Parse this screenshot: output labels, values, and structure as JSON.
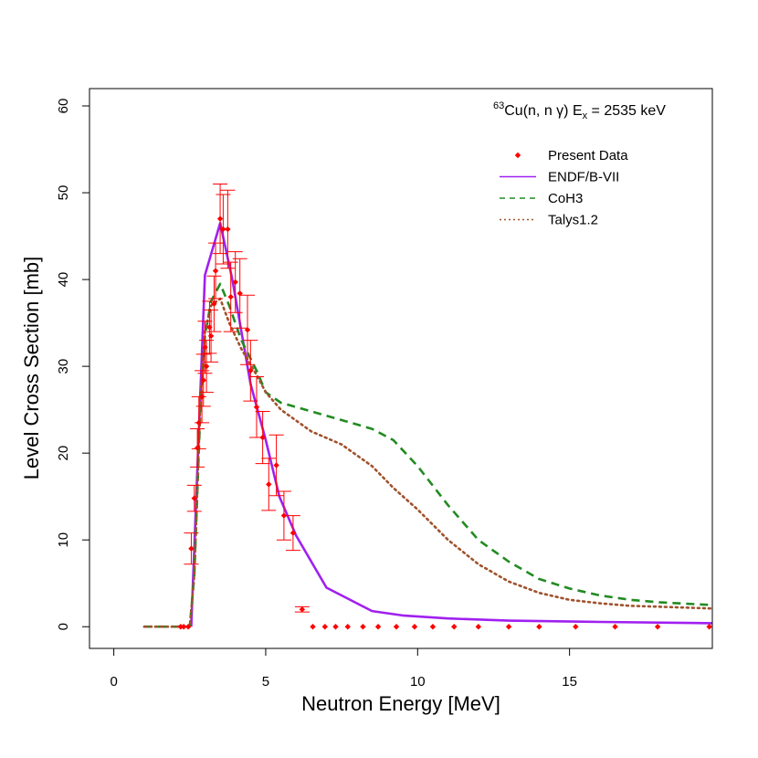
{
  "chart_data": {
    "type": "scatter",
    "title": "",
    "annotation": {
      "mass_number": "63",
      "reaction": "Cu(n, n γ) E",
      "sub": "x",
      "rest": " = 2535 keV"
    },
    "xlabel": "Neutron Energy [MeV]",
    "ylabel": "Level Cross Section [mb]",
    "xlim": [
      -0.8,
      19.7
    ],
    "ylim": [
      -2.5,
      62
    ],
    "xticks": [
      0,
      5,
      10,
      15
    ],
    "yticks": [
      0,
      10,
      20,
      30,
      40,
      50,
      60
    ],
    "grid": false,
    "legend_position": "top-right",
    "legend": [
      {
        "label": "Present Data",
        "symbol": "diamond",
        "color": "#ff0000"
      },
      {
        "label": "ENDF/B-VII",
        "symbol": "solid",
        "color": "#a020f0"
      },
      {
        "label": "CoH3",
        "symbol": "dashed",
        "color": "#228b22"
      },
      {
        "label": "Talys1.2",
        "symbol": "dotted",
        "color": "#a0522d"
      }
    ],
    "series": [
      {
        "name": "Present Data",
        "kind": "points",
        "color": "#ff0000",
        "points": [
          [
            2.2,
            0,
            0
          ],
          [
            2.3,
            0,
            0
          ],
          [
            2.45,
            0,
            0
          ],
          [
            2.55,
            9.0,
            1.8
          ],
          [
            2.65,
            14.8,
            1.5
          ],
          [
            2.75,
            20.6,
            2.2
          ],
          [
            2.8,
            23.5,
            3.0
          ],
          [
            2.9,
            26.5,
            3.0
          ],
          [
            2.95,
            28.4,
            3.0
          ],
          [
            3.0,
            32.2,
            3.0
          ],
          [
            3.05,
            30.0,
            3.0
          ],
          [
            3.15,
            34.5,
            3.0
          ],
          [
            3.2,
            33.5,
            3.0
          ],
          [
            3.3,
            37.2,
            3.2
          ],
          [
            3.35,
            41.0,
            3.2
          ],
          [
            3.5,
            47.0,
            4.0
          ],
          [
            3.6,
            45.8,
            4.0
          ],
          [
            3.75,
            45.8,
            4.5
          ],
          [
            3.85,
            38.0,
            4.0
          ],
          [
            4.0,
            39.7,
            3.5
          ],
          [
            4.15,
            38.4,
            4.0
          ],
          [
            4.4,
            34.2,
            4.0
          ],
          [
            4.5,
            29.5,
            3.5
          ],
          [
            4.7,
            25.3,
            3.5
          ],
          [
            4.9,
            21.8,
            3.0
          ],
          [
            5.1,
            16.4,
            3.0
          ],
          [
            5.35,
            18.6,
            3.5
          ],
          [
            5.6,
            12.8,
            2.8
          ],
          [
            5.9,
            10.8,
            2.0
          ],
          [
            6.2,
            2.0,
            0.3
          ],
          [
            6.55,
            0,
            0
          ],
          [
            6.95,
            0,
            0
          ],
          [
            7.3,
            0,
            0
          ],
          [
            7.7,
            0,
            0
          ],
          [
            8.2,
            0,
            0
          ],
          [
            8.7,
            0,
            0
          ],
          [
            9.3,
            0,
            0
          ],
          [
            9.9,
            0,
            0
          ],
          [
            10.5,
            0,
            0
          ],
          [
            11.2,
            0,
            0
          ],
          [
            12.0,
            0,
            0
          ],
          [
            13.0,
            0,
            0
          ],
          [
            14.0,
            0,
            0
          ],
          [
            15.2,
            0,
            0
          ],
          [
            16.5,
            0,
            0
          ],
          [
            17.9,
            0,
            0
          ],
          [
            19.6,
            0,
            0
          ]
        ]
      },
      {
        "name": "ENDF/B-VII",
        "kind": "line",
        "dash": "solid",
        "color": "#a020f0",
        "points": [
          [
            2.55,
            0
          ],
          [
            3.0,
            40.5
          ],
          [
            3.5,
            46.5
          ],
          [
            3.9,
            40.0
          ],
          [
            4.5,
            28.0
          ],
          [
            5.0,
            21.5
          ],
          [
            5.45,
            15.0
          ],
          [
            6.0,
            10.5
          ],
          [
            7.0,
            4.5
          ],
          [
            8.5,
            1.8
          ],
          [
            9.5,
            1.3
          ],
          [
            11.0,
            0.95
          ],
          [
            13.0,
            0.7
          ],
          [
            16.0,
            0.55
          ],
          [
            19.7,
            0.4
          ]
        ]
      },
      {
        "name": "CoH3",
        "kind": "line",
        "dash": "dashed",
        "color": "#228b22",
        "points": [
          [
            1.0,
            0
          ],
          [
            2.5,
            0
          ],
          [
            2.65,
            6.0
          ],
          [
            2.85,
            25.0
          ],
          [
            3.0,
            33.5
          ],
          [
            3.2,
            37.5
          ],
          [
            3.5,
            39.5
          ],
          [
            3.8,
            37.0
          ],
          [
            4.2,
            33.0
          ],
          [
            4.7,
            29.5
          ],
          [
            5.0,
            27.0
          ],
          [
            5.5,
            25.8
          ],
          [
            6.5,
            24.8
          ],
          [
            7.5,
            23.8
          ],
          [
            8.5,
            22.8
          ],
          [
            9.2,
            21.5
          ],
          [
            10.0,
            18.5
          ],
          [
            11.0,
            14.0
          ],
          [
            12.0,
            10.0
          ],
          [
            13.0,
            7.5
          ],
          [
            14.0,
            5.5
          ],
          [
            15.0,
            4.4
          ],
          [
            16.0,
            3.6
          ],
          [
            17.0,
            3.1
          ],
          [
            18.0,
            2.8
          ],
          [
            19.7,
            2.5
          ]
        ]
      },
      {
        "name": "Talys1.2",
        "kind": "line",
        "dash": "dotted",
        "color": "#a0522d",
        "points": [
          [
            1.0,
            0
          ],
          [
            2.5,
            0
          ],
          [
            2.65,
            6.0
          ],
          [
            2.85,
            26.0
          ],
          [
            3.0,
            34.0
          ],
          [
            3.2,
            37.0
          ],
          [
            3.5,
            37.8
          ],
          [
            3.8,
            35.0
          ],
          [
            4.2,
            32.0
          ],
          [
            4.7,
            29.0
          ],
          [
            5.0,
            27.0
          ],
          [
            5.5,
            25.0
          ],
          [
            6.5,
            22.5
          ],
          [
            7.5,
            21.0
          ],
          [
            8.5,
            18.5
          ],
          [
            9.2,
            16.0
          ],
          [
            10.0,
            13.5
          ],
          [
            11.0,
            10.0
          ],
          [
            12.0,
            7.2
          ],
          [
            13.0,
            5.2
          ],
          [
            14.0,
            3.9
          ],
          [
            15.0,
            3.1
          ],
          [
            16.0,
            2.7
          ],
          [
            17.0,
            2.4
          ],
          [
            18.0,
            2.3
          ],
          [
            19.7,
            2.1
          ]
        ]
      }
    ]
  }
}
